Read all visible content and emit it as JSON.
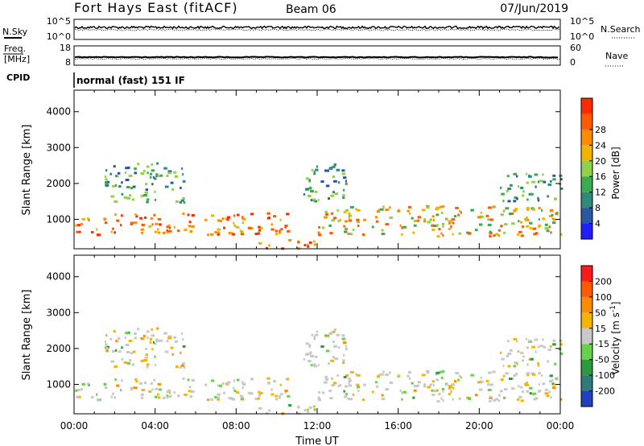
{
  "header": {
    "station": "Fort Hays East (fitACF)",
    "beam": "Beam 06",
    "date": "07/Jun/2019"
  },
  "strip_panels": {
    "nsky": {
      "label": "N.Sky",
      "left_ticks": [
        "10^5",
        "10^0"
      ]
    },
    "nsearch": {
      "label": "N.Search",
      "right_ticks": [
        "10^5",
        "10^0"
      ]
    },
    "freq": {
      "label_line1": "Freq.",
      "label_line2": "[MHz]",
      "left_ticks": [
        "18",
        "8"
      ]
    },
    "nave": {
      "label": "Nave",
      "right_ticks": [
        "60",
        "0"
      ]
    },
    "cpid": {
      "label": "CPID",
      "value": "normal (fast) 151 IF"
    }
  },
  "chart_data": [
    {
      "type": "heatmap",
      "name": "power",
      "xlabel": "",
      "ylabel": "Slant Range [km]",
      "xlim_hours": [
        0,
        24
      ],
      "ylim": [
        180,
        4600
      ],
      "yticks": [
        1000,
        2000,
        3000,
        4000
      ],
      "colorbar": {
        "label": "Power [dB]",
        "ticks": [
          "4",
          "8",
          "12",
          "16",
          "20",
          "24",
          "28"
        ],
        "colors": [
          "#1f1fff",
          "#2a56a6",
          "#2f8a7a",
          "#3caa4f",
          "#8fd24a",
          "#f0b400",
          "#ff8c00",
          "#ff5a00",
          "#ff2a00"
        ]
      },
      "echo_regions": [
        {
          "t_start": 0.0,
          "t_end": 10.5,
          "range_km": [
            600,
            1200
          ],
          "level": "high"
        },
        {
          "t_start": 12.0,
          "t_end": 24.0,
          "range_km": [
            550,
            1400
          ],
          "level": "medium"
        },
        {
          "t_start": 1.5,
          "t_end": 5.5,
          "range_km": [
            1500,
            2600
          ],
          "level": "low"
        },
        {
          "t_start": 11.3,
          "t_end": 13.5,
          "range_km": [
            1500,
            2600
          ],
          "level": "low"
        },
        {
          "t_start": 9.0,
          "t_end": 12.0,
          "range_km": [
            200,
            450
          ],
          "level": "high"
        },
        {
          "t_start": 21.0,
          "t_end": 24.0,
          "range_km": [
            1500,
            2300
          ],
          "level": "low"
        }
      ]
    },
    {
      "type": "heatmap",
      "name": "velocity",
      "xlabel": "Time UT",
      "ylabel": "Slant Range [km]",
      "xlim_hours": [
        0,
        24
      ],
      "ylim": [
        180,
        4600
      ],
      "yticks": [
        1000,
        2000,
        3000,
        4000
      ],
      "xticks": [
        "00:00",
        "04:00",
        "08:00",
        "12:00",
        "16:00",
        "20:00",
        "00:00"
      ],
      "colorbar": {
        "label": "Velocity [m s^-1]",
        "ticks": [
          "200",
          "100",
          "50",
          "15",
          "-15",
          "-50",
          "-100",
          "-200"
        ],
        "colors": [
          "#1f3fbf",
          "#2f7a7a",
          "#2a9a3a",
          "#66d14a",
          "#c8c8c8",
          "#f5b400",
          "#ff8c00",
          "#ff5a00",
          "#ff1a1a"
        ]
      }
    }
  ],
  "colors": {
    "background": "#ffffff",
    "axis": "#000000"
  }
}
